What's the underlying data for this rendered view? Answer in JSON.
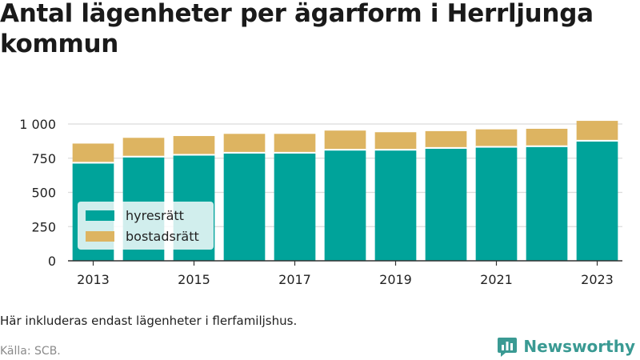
{
  "title": "Antal lägenheter per ägarform i Herrljunga kommun",
  "note": "Här inkluderas endast lägenheter i flerfamiljshus.",
  "source": "Källa: SCB.",
  "brand": {
    "name": "Newsworthy",
    "icon": "newsworthy-logo-icon"
  },
  "colors": {
    "hyresratt": "#00a39a",
    "bostadsratt": "#ddb461",
    "grid": "#dcdcdc",
    "axis": "#333333"
  },
  "legend": {
    "items": [
      {
        "label": "hyresrätt",
        "color": "#00a39a"
      },
      {
        "label": "bostadsrätt",
        "color": "#ddb461"
      }
    ]
  },
  "chart_data": {
    "type": "bar",
    "stacked": true,
    "title": "Antal lägenheter per ägarform i Herrljunga kommun",
    "x": [
      2013,
      2014,
      2015,
      2016,
      2017,
      2018,
      2019,
      2020,
      2021,
      2022,
      2023
    ],
    "x_tick_labels": [
      "2013",
      "2015",
      "2017",
      "2019",
      "2021",
      "2023"
    ],
    "y_tick_labels": [
      "0",
      "250",
      "500",
      "750",
      "1 000"
    ],
    "y_ticks": [
      0,
      250,
      500,
      750,
      1000
    ],
    "ylim": [
      0,
      1000
    ],
    "grid": true,
    "legend_position": "bottom-left",
    "series": [
      {
        "name": "hyresrätt",
        "values": [
          717,
          762,
          775,
          790,
          790,
          812,
          812,
          825,
          833,
          838,
          878
        ]
      },
      {
        "name": "bostadsrätt",
        "values": [
          140,
          137,
          137,
          138,
          138,
          140,
          128,
          123,
          128,
          127,
          145
        ]
      }
    ]
  }
}
